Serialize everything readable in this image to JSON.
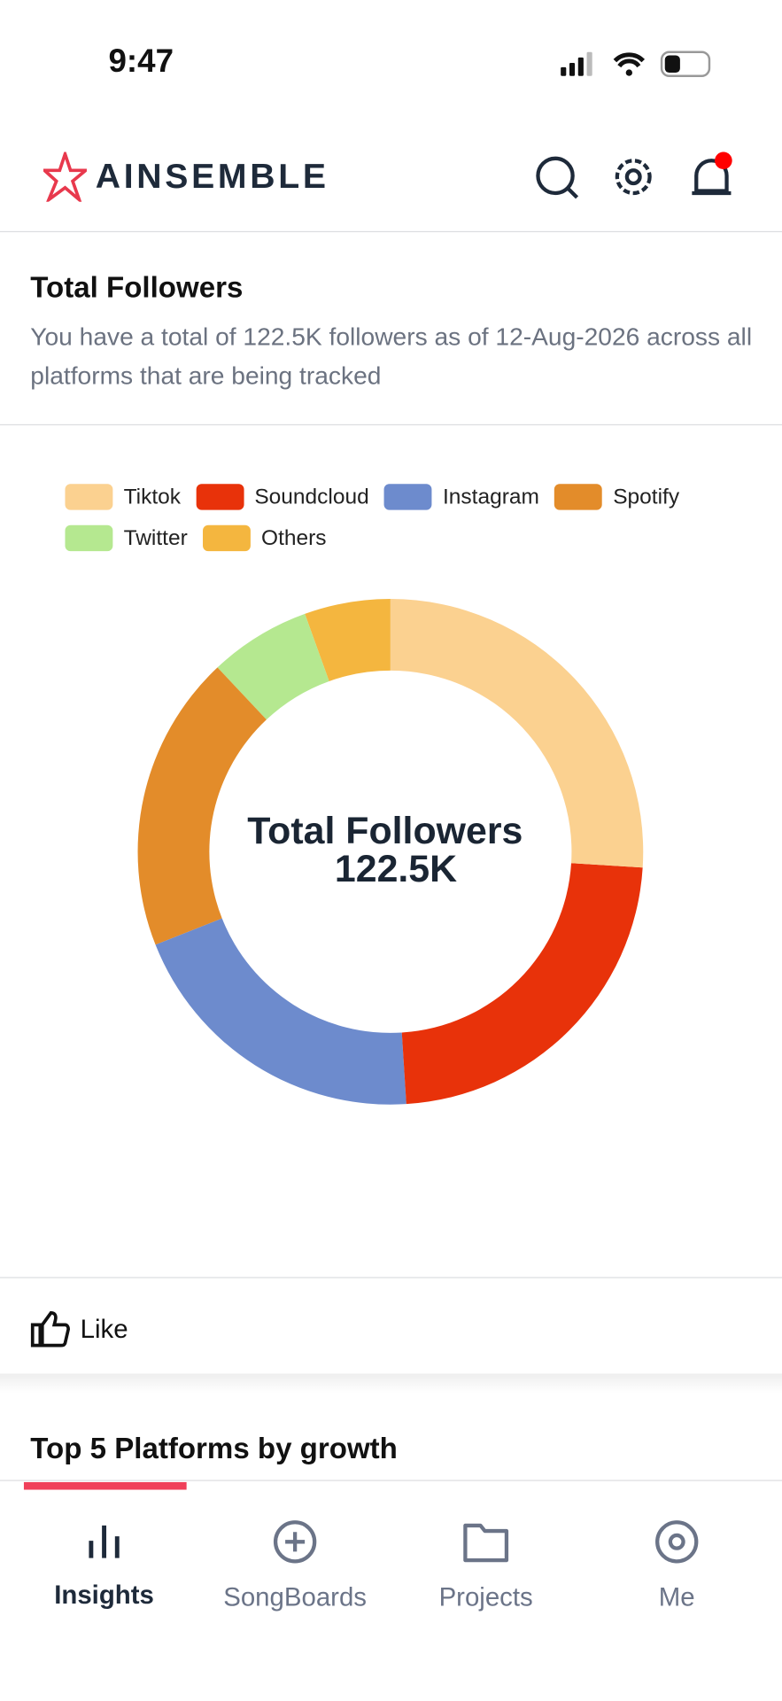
{
  "status_bar": {
    "time": "9:47"
  },
  "header": {
    "brand": "AINSEMBLE"
  },
  "card": {
    "title": "Total Followers",
    "description": "You have a total of 122.5K followers as of 12-Aug-2026 across all platforms that are being tracked"
  },
  "chart_data": {
    "type": "donut",
    "categories": [
      "Tiktok",
      "Soundcloud",
      "Instagram",
      "Spotify",
      "Twitter",
      "Others"
    ],
    "values": [
      26,
      23,
      20,
      19,
      6.5,
      5.5
    ],
    "colors": [
      "#fbd190",
      "#e8320a",
      "#6d8bcd",
      "#e38c2a",
      "#b5e890",
      "#f4b63f"
    ],
    "center_label": "Total Followers",
    "center_value": "122.5K"
  },
  "like": "Like",
  "section_title": "Top 5 Platforms by growth",
  "nav": [
    "Insights",
    "SongBoards",
    "Projects",
    "Me"
  ]
}
